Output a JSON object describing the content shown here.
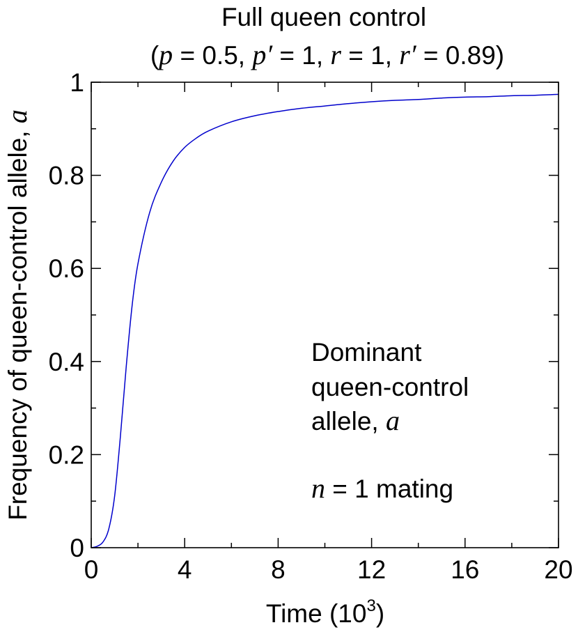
{
  "chart_data": {
    "type": "line",
    "title_line1": "Full queen control",
    "title_line2": {
      "open": "(",
      "p_sym": "p",
      "p_val": " = 0.5, ",
      "pp_sym": "p′",
      "pp_val": " = 1, ",
      "r_sym": "r",
      "r_val": " = 1, ",
      "rp_sym": "r′",
      "rp_val": " = 0.89)"
    },
    "xlabel": "Time (10",
    "xlabel_exp": "3",
    "xlabel_close": ")",
    "ylabel": "Frequency of queen-control allele, ",
    "ylabel_sym": "a",
    "xlim": [
      0,
      20
    ],
    "ylim": [
      0,
      1
    ],
    "x_ticks": [
      0,
      4,
      8,
      12,
      16,
      20
    ],
    "x_tick_labels": [
      "0",
      "4",
      "8",
      "12",
      "16",
      "20"
    ],
    "y_ticks": [
      0,
      0.2,
      0.4,
      0.6,
      0.8,
      1
    ],
    "y_tick_labels": [
      "0",
      "0.2",
      "0.4",
      "0.6",
      "0.8",
      "1"
    ],
    "x_minor_step": 2,
    "y_minor_step": 0.1,
    "grid": false,
    "annotation": {
      "line1": "Dominant",
      "line2": "queen-control",
      "line3_text": "allele, ",
      "line3_sym": "a",
      "line4_sym": "n",
      "line4_text": " = 1 mating"
    },
    "series": [
      {
        "color": "#0000cc",
        "x": [
          0,
          0.25,
          0.5,
          0.75,
          1.0,
          1.25,
          1.5,
          1.75,
          2.0,
          2.5,
          3.0,
          3.5,
          4.0,
          4.5,
          5.0,
          6.0,
          7.0,
          8.0,
          9.0,
          10.0,
          11.0,
          12.0,
          13.0,
          14.0,
          15.0,
          16.0,
          17.0,
          18.0,
          19.0,
          20.0
        ],
        "y": [
          0.0,
          0.003,
          0.012,
          0.04,
          0.11,
          0.24,
          0.39,
          0.52,
          0.61,
          0.72,
          0.785,
          0.83,
          0.86,
          0.88,
          0.895,
          0.915,
          0.928,
          0.937,
          0.944,
          0.949,
          0.954,
          0.958,
          0.961,
          0.963,
          0.966,
          0.968,
          0.969,
          0.971,
          0.972,
          0.974
        ]
      }
    ]
  }
}
